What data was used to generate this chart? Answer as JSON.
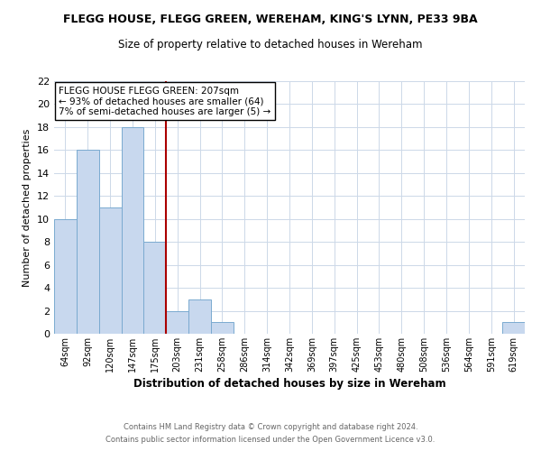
{
  "title": "FLEGG HOUSE, FLEGG GREEN, WEREHAM, KING'S LYNN, PE33 9BA",
  "subtitle": "Size of property relative to detached houses in Wereham",
  "xlabel": "Distribution of detached houses by size in Wereham",
  "ylabel": "Number of detached properties",
  "bar_labels": [
    "64sqm",
    "92sqm",
    "120sqm",
    "147sqm",
    "175sqm",
    "203sqm",
    "231sqm",
    "258sqm",
    "286sqm",
    "314sqm",
    "342sqm",
    "369sqm",
    "397sqm",
    "425sqm",
    "453sqm",
    "480sqm",
    "508sqm",
    "536sqm",
    "564sqm",
    "591sqm",
    "619sqm"
  ],
  "bar_values": [
    10,
    16,
    11,
    18,
    8,
    2,
    3,
    1,
    0,
    0,
    0,
    0,
    0,
    0,
    0,
    0,
    0,
    0,
    0,
    0,
    1
  ],
  "bar_color": "#c8d8ee",
  "bar_edge_color": "#7aaad0",
  "vline_color": "#aa0000",
  "ylim": [
    0,
    22
  ],
  "yticks": [
    0,
    2,
    4,
    6,
    8,
    10,
    12,
    14,
    16,
    18,
    20,
    22
  ],
  "annotation_lines": [
    "FLEGG HOUSE FLEGG GREEN: 207sqm",
    "← 93% of detached houses are smaller (64)",
    "7% of semi-detached houses are larger (5) →"
  ],
  "footer_line1": "Contains HM Land Registry data © Crown copyright and database right 2024.",
  "footer_line2": "Contains public sector information licensed under the Open Government Licence v3.0.",
  "bg_color": "#ffffff",
  "grid_color": "#ccd8e8"
}
